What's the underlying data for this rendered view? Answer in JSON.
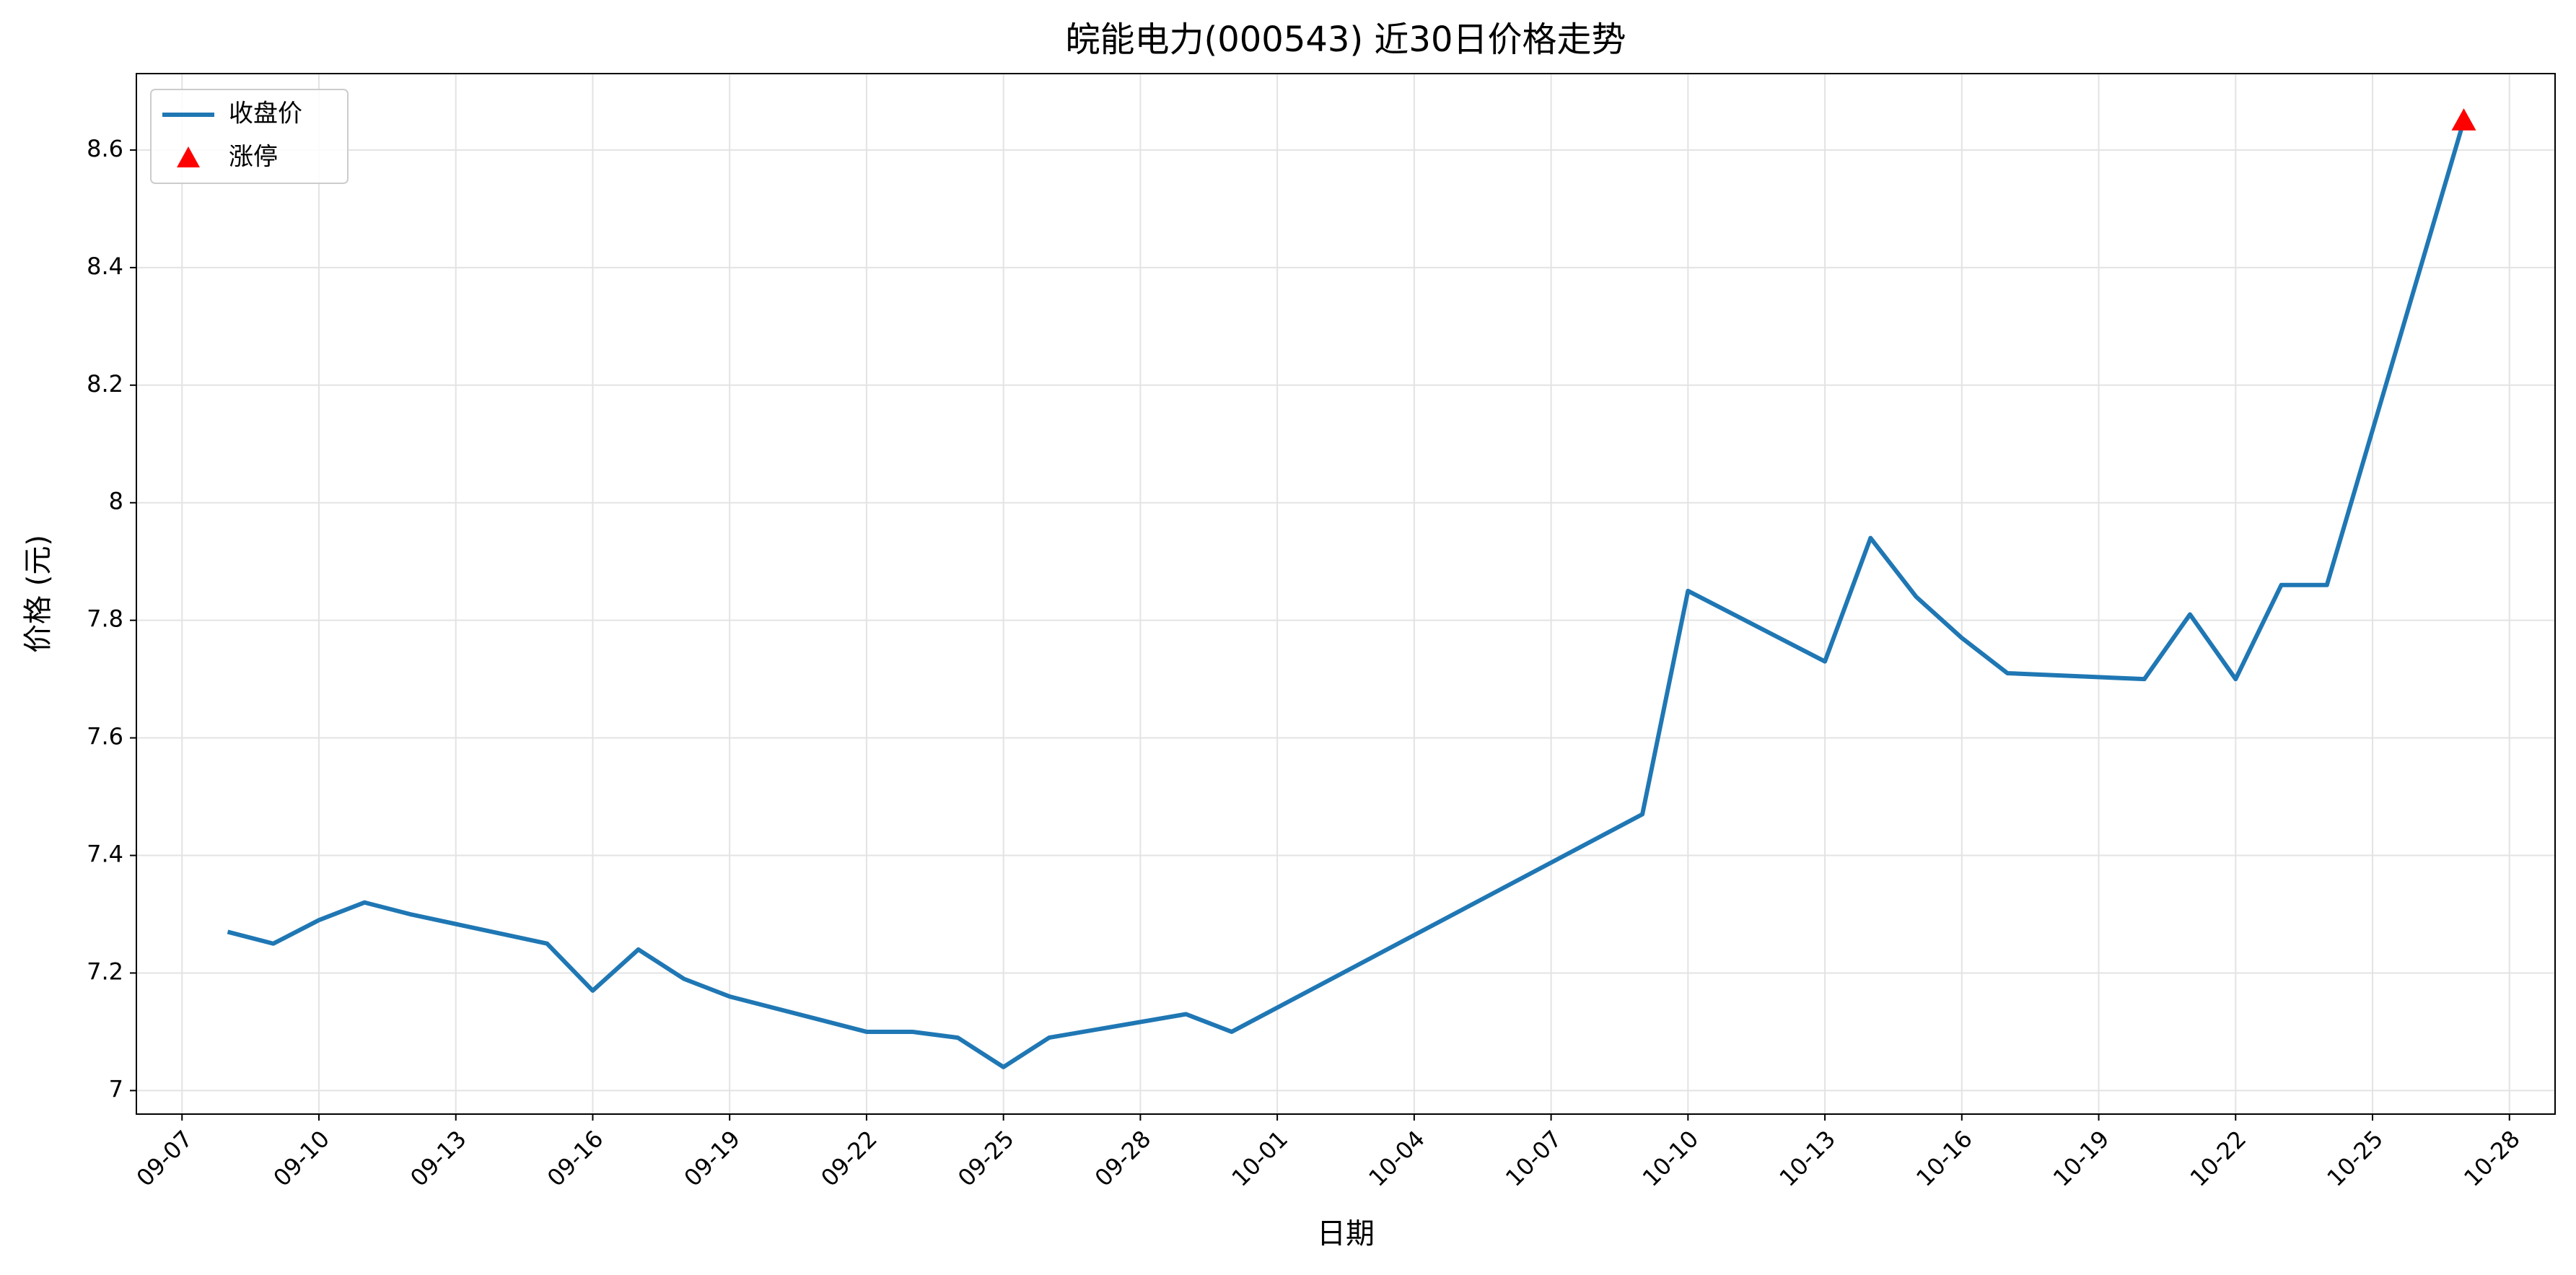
{
  "chart_data": {
    "type": "line",
    "title": "皖能电力(000543) 近30日价格走势",
    "xlabel": "日期",
    "ylabel": "价格 (元)",
    "x": [
      "09-08",
      "09-09",
      "09-10",
      "09-11",
      "09-12",
      "09-15",
      "09-16",
      "09-17",
      "09-18",
      "09-19",
      "09-22",
      "09-23",
      "09-24",
      "09-25",
      "09-26",
      "09-29",
      "09-30",
      "10-09",
      "10-10",
      "10-13",
      "10-14",
      "10-15",
      "10-16",
      "10-17",
      "10-20",
      "10-21",
      "10-22",
      "10-23",
      "10-24",
      "10-27"
    ],
    "series": [
      {
        "name": "收盘价",
        "type": "line",
        "color": "#1f77b4",
        "values": [
          7.27,
          7.25,
          7.29,
          7.32,
          7.3,
          7.25,
          7.17,
          7.24,
          7.19,
          7.16,
          7.1,
          7.1,
          7.09,
          7.04,
          7.09,
          7.13,
          7.1,
          7.47,
          7.85,
          7.73,
          7.94,
          7.84,
          7.77,
          7.71,
          7.7,
          7.81,
          7.7,
          7.86,
          7.86,
          8.65
        ]
      },
      {
        "name": "涨停",
        "type": "scatter",
        "color": "#ff0000",
        "x": [
          "10-27"
        ],
        "values": [
          8.65
        ]
      }
    ],
    "xlim": [
      "09-06",
      "10-29"
    ],
    "xticks": [
      "09-07",
      "09-10",
      "09-13",
      "09-16",
      "09-19",
      "09-22",
      "09-25",
      "09-28",
      "10-01",
      "10-04",
      "10-07",
      "10-10",
      "10-13",
      "10-16",
      "10-19",
      "10-22",
      "10-25",
      "10-28"
    ],
    "ylim": [
      6.96,
      8.73
    ],
    "yticks": [
      7.0,
      7.2,
      7.4,
      7.6,
      7.8,
      8.0,
      8.2,
      8.4,
      8.6
    ],
    "grid": true,
    "legend": "upper left"
  }
}
